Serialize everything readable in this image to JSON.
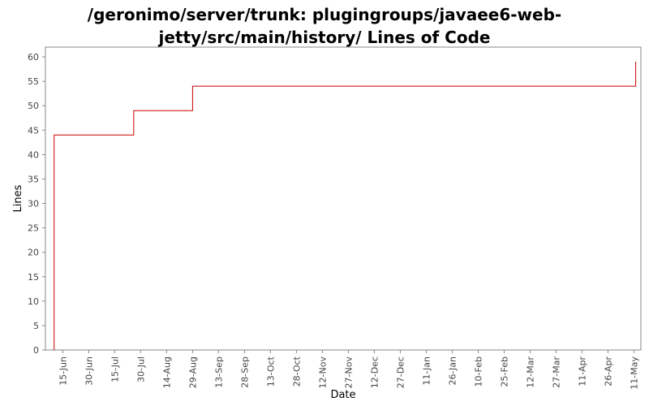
{
  "chart_data": {
    "type": "line",
    "step": true,
    "title_lines": [
      "/geronimo/server/trunk: plugingroups/javaee6-web-",
      "jetty/src/main/history/ Lines of Code"
    ],
    "xlabel": "Date",
    "ylabel": "Lines",
    "ylim": [
      0,
      62
    ],
    "yticks": [
      0,
      5,
      10,
      15,
      20,
      25,
      30,
      35,
      40,
      45,
      50,
      55,
      60
    ],
    "xlim": [
      "2009-06-05",
      "2010-05-15"
    ],
    "xticks": [
      {
        "date": "2009-06-15",
        "label": "15-Jun"
      },
      {
        "date": "2009-06-30",
        "label": "30-Jun"
      },
      {
        "date": "2009-07-15",
        "label": "15-Jul"
      },
      {
        "date": "2009-07-30",
        "label": "30-Jul"
      },
      {
        "date": "2009-08-14",
        "label": "14-Aug"
      },
      {
        "date": "2009-08-29",
        "label": "29-Aug"
      },
      {
        "date": "2009-09-13",
        "label": "13-Sep"
      },
      {
        "date": "2009-09-28",
        "label": "28-Sep"
      },
      {
        "date": "2009-10-13",
        "label": "13-Oct"
      },
      {
        "date": "2009-10-28",
        "label": "28-Oct"
      },
      {
        "date": "2009-11-12",
        "label": "12-Nov"
      },
      {
        "date": "2009-11-27",
        "label": "27-Nov"
      },
      {
        "date": "2009-12-12",
        "label": "12-Dec"
      },
      {
        "date": "2009-12-27",
        "label": "27-Dec"
      },
      {
        "date": "2010-01-11",
        "label": "11-Jan"
      },
      {
        "date": "2010-01-26",
        "label": "26-Jan"
      },
      {
        "date": "2010-02-10",
        "label": "10-Feb"
      },
      {
        "date": "2010-02-25",
        "label": "25-Feb"
      },
      {
        "date": "2010-03-12",
        "label": "12-Mar"
      },
      {
        "date": "2010-03-27",
        "label": "27-Mar"
      },
      {
        "date": "2010-04-11",
        "label": "11-Apr"
      },
      {
        "date": "2010-04-26",
        "label": "26-Apr"
      },
      {
        "date": "2010-05-11",
        "label": "11-May"
      }
    ],
    "series": [
      {
        "color": "#cc0000",
        "points": [
          {
            "x": "2009-06-10",
            "y": 0
          },
          {
            "x": "2009-06-10",
            "y": 44
          },
          {
            "x": "2009-07-26",
            "y": 44
          },
          {
            "x": "2009-07-26",
            "y": 49
          },
          {
            "x": "2009-08-29",
            "y": 49
          },
          {
            "x": "2009-08-29",
            "y": 54
          },
          {
            "x": "2010-05-12",
            "y": 54
          },
          {
            "x": "2010-05-12",
            "y": 59
          }
        ]
      }
    ],
    "grid": false,
    "plot_background": "#ffffff",
    "frame_color": "#888888"
  }
}
